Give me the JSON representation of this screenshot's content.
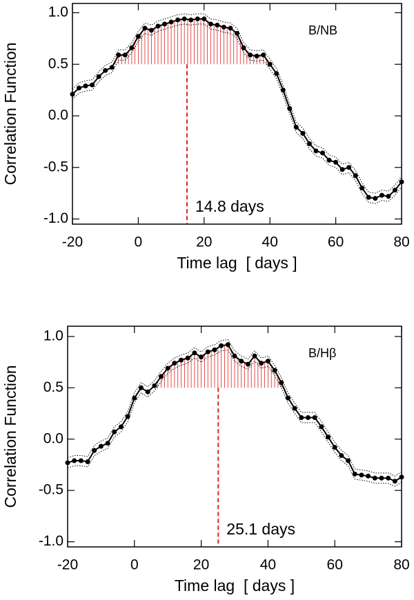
{
  "chart_data": [
    {
      "type": "line",
      "label": "B/NB",
      "xlabel": "Time lag  [ days ]",
      "ylabel": "Correlation Function",
      "x": [
        -20,
        -18,
        -16,
        -14,
        -12,
        -10,
        -8,
        -6,
        -4,
        -2,
        0,
        2,
        4,
        6,
        8,
        10,
        12,
        14,
        16,
        18,
        20,
        22,
        24,
        26,
        28,
        30,
        32,
        34,
        36,
        38,
        40,
        42,
        44,
        46,
        48,
        50,
        52,
        54,
        56,
        58,
        60,
        62,
        64,
        66,
        68,
        70,
        72,
        74,
        76,
        78,
        80
      ],
      "series": [
        {
          "color": "#000000",
          "style": "solid",
          "markers": true,
          "values": [
            0.21,
            0.27,
            0.29,
            0.3,
            0.38,
            0.44,
            0.47,
            0.59,
            0.59,
            0.66,
            0.77,
            0.85,
            0.83,
            0.87,
            0.89,
            0.91,
            0.93,
            0.94,
            0.93,
            0.94,
            0.94,
            0.89,
            0.88,
            0.86,
            0.85,
            0.8,
            0.66,
            0.59,
            0.58,
            0.59,
            0.5,
            0.41,
            0.25,
            0.07,
            -0.11,
            -0.17,
            -0.27,
            -0.34,
            -0.36,
            -0.43,
            -0.45,
            -0.52,
            -0.5,
            -0.58,
            -0.7,
            -0.79,
            -0.8,
            -0.77,
            -0.78,
            -0.72,
            -0.64
          ]
        },
        {
          "color": "#000000",
          "style": "dotted",
          "markers": false,
          "values": [
            0.26,
            0.32,
            0.34,
            0.35,
            0.43,
            0.49,
            0.52,
            0.64,
            0.64,
            0.71,
            0.82,
            0.9,
            0.88,
            0.92,
            0.94,
            0.96,
            0.98,
            0.99,
            0.98,
            0.99,
            0.99,
            0.94,
            0.93,
            0.91,
            0.9,
            0.85,
            0.71,
            0.64,
            0.63,
            0.64,
            0.55,
            0.46,
            0.3,
            0.12,
            -0.06,
            -0.12,
            -0.22,
            -0.29,
            -0.31,
            -0.38,
            -0.4,
            -0.47,
            -0.45,
            -0.53,
            -0.65,
            -0.74,
            -0.75,
            -0.72,
            -0.73,
            -0.67,
            -0.59
          ]
        },
        {
          "color": "#000000",
          "style": "dotted",
          "markers": false,
          "values": [
            0.16,
            0.22,
            0.24,
            0.25,
            0.33,
            0.39,
            0.42,
            0.54,
            0.54,
            0.61,
            0.72,
            0.8,
            0.78,
            0.82,
            0.84,
            0.86,
            0.88,
            0.89,
            0.88,
            0.89,
            0.89,
            0.84,
            0.83,
            0.81,
            0.8,
            0.75,
            0.61,
            0.54,
            0.53,
            0.54,
            0.45,
            0.36,
            0.2,
            0.02,
            -0.16,
            -0.22,
            -0.32,
            -0.39,
            -0.41,
            -0.48,
            -0.5,
            -0.57,
            -0.55,
            -0.63,
            -0.75,
            -0.84,
            -0.85,
            -0.82,
            -0.83,
            -0.77,
            -0.69
          ]
        }
      ],
      "threshold": 0.5,
      "highlight_color": "#dd2222",
      "centroid": 14.8,
      "annotation": "14.8 days",
      "xlim": [
        -20,
        80
      ],
      "xticks": [
        -20,
        0,
        20,
        40,
        60,
        80
      ],
      "ylim": [
        -1.05,
        1.09
      ],
      "yticks": [
        {
          "value": -1.0,
          "label": "-1.0"
        },
        {
          "value": -0.5,
          "label": "-0.5"
        },
        {
          "value": 0.0,
          "label": "0.0"
        },
        {
          "value": 0.5,
          "label": "0.5"
        },
        {
          "value": 1.0,
          "label": "1.0"
        }
      ]
    },
    {
      "type": "line",
      "label": "B/Hβ",
      "xlabel": "Time lag  [ days ]",
      "ylabel": "Correlation Function",
      "x": [
        -20,
        -18,
        -16,
        -14,
        -12,
        -10,
        -8,
        -6,
        -4,
        -2,
        0,
        2,
        4,
        6,
        8,
        10,
        12,
        14,
        16,
        18,
        20,
        22,
        24,
        26,
        28,
        30,
        32,
        34,
        36,
        38,
        40,
        42,
        44,
        46,
        48,
        50,
        52,
        54,
        56,
        58,
        60,
        62,
        64,
        66,
        68,
        70,
        72,
        74,
        76,
        78,
        80
      ],
      "series": [
        {
          "color": "#000000",
          "style": "solid",
          "markers": true,
          "values": [
            -0.23,
            -0.21,
            -0.21,
            -0.22,
            -0.11,
            -0.07,
            -0.04,
            0.07,
            0.12,
            0.22,
            0.4,
            0.5,
            0.46,
            0.52,
            0.61,
            0.69,
            0.74,
            0.77,
            0.79,
            0.84,
            0.8,
            0.85,
            0.87,
            0.91,
            0.92,
            0.81,
            0.76,
            0.73,
            0.81,
            0.74,
            0.76,
            0.67,
            0.55,
            0.4,
            0.3,
            0.21,
            0.21,
            0.21,
            0.12,
            0.02,
            -0.08,
            -0.16,
            -0.21,
            -0.34,
            -0.35,
            -0.36,
            -0.38,
            -0.38,
            -0.38,
            -0.41,
            -0.37
          ]
        },
        {
          "color": "#000000",
          "style": "dotted",
          "markers": false,
          "values": [
            -0.18,
            -0.16,
            -0.16,
            -0.17,
            -0.06,
            -0.02,
            0.01,
            0.12,
            0.17,
            0.27,
            0.45,
            0.55,
            0.51,
            0.57,
            0.66,
            0.74,
            0.79,
            0.82,
            0.84,
            0.89,
            0.85,
            0.9,
            0.92,
            0.96,
            0.97,
            0.86,
            0.81,
            0.78,
            0.86,
            0.79,
            0.81,
            0.72,
            0.6,
            0.45,
            0.35,
            0.26,
            0.26,
            0.26,
            0.17,
            0.07,
            -0.03,
            -0.11,
            -0.16,
            -0.29,
            -0.3,
            -0.31,
            -0.33,
            -0.33,
            -0.33,
            -0.36,
            -0.32
          ]
        },
        {
          "color": "#000000",
          "style": "dotted",
          "markers": false,
          "values": [
            -0.28,
            -0.26,
            -0.26,
            -0.27,
            -0.16,
            -0.12,
            -0.09,
            0.02,
            0.07,
            0.17,
            0.35,
            0.45,
            0.41,
            0.47,
            0.56,
            0.64,
            0.69,
            0.72,
            0.74,
            0.79,
            0.75,
            0.8,
            0.82,
            0.86,
            0.87,
            0.76,
            0.71,
            0.68,
            0.76,
            0.69,
            0.71,
            0.62,
            0.5,
            0.35,
            0.25,
            0.16,
            0.16,
            0.16,
            0.07,
            -0.03,
            -0.13,
            -0.21,
            -0.26,
            -0.39,
            -0.4,
            -0.41,
            -0.43,
            -0.43,
            -0.43,
            -0.46,
            -0.42
          ]
        }
      ],
      "threshold": 0.5,
      "highlight_color": "#dd2222",
      "centroid": 25.1,
      "annotation": "25.1 days",
      "xlim": [
        -20,
        80
      ],
      "xticks": [
        -20,
        0,
        20,
        40,
        60,
        80
      ],
      "ylim": [
        -1.05,
        1.1
      ],
      "yticks": [
        {
          "value": -1.0,
          "label": "-1.0"
        },
        {
          "value": -0.5,
          "label": "-0.5"
        },
        {
          "value": 0.0,
          "label": "0.0"
        },
        {
          "value": 0.5,
          "label": "0.5"
        },
        {
          "value": 1.0,
          "label": "1.0"
        }
      ]
    }
  ]
}
